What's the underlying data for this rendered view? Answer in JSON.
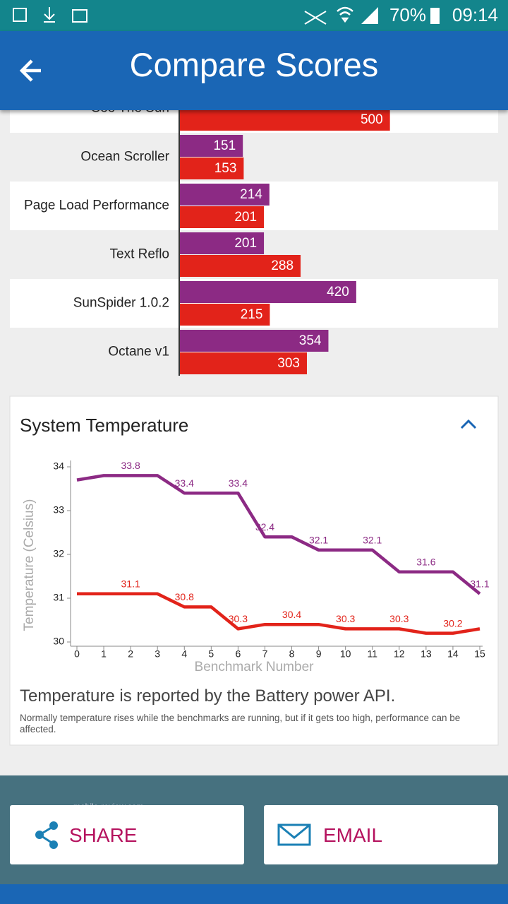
{
  "status_bar": {
    "battery": "70%",
    "time": "09:14"
  },
  "header": {
    "title": "Compare Scores"
  },
  "chart_data": [
    {
      "type": "bar",
      "orientation": "horizontal",
      "categories": [
        "See The Sun",
        "Ocean Scroller",
        "Page Load Performance",
        "Text Reflo",
        "SunSpider 1.0.2",
        "Octane v1"
      ],
      "series": [
        {
          "color": "#8c2a84",
          "values": [
            null,
            151,
            214,
            201,
            420,
            354
          ]
        },
        {
          "color": "#e2231a",
          "values": [
            500,
            153,
            201,
            288,
            215,
            303
          ]
        }
      ],
      "xlim": [
        0,
        750
      ]
    },
    {
      "type": "line",
      "title": "System Temperature",
      "xlabel": "Benchmark Number",
      "ylabel": "Temperature (Celsius)",
      "x": [
        0,
        1,
        2,
        3,
        4,
        5,
        6,
        7,
        8,
        9,
        10,
        11,
        12,
        13,
        14,
        15
      ],
      "xlim": [
        0,
        15
      ],
      "xticks": [
        0,
        1,
        2,
        3,
        4,
        5,
        6,
        7,
        8,
        9,
        10,
        11,
        12,
        13,
        14,
        15
      ],
      "ylim": [
        30,
        34
      ],
      "yticks": [
        30,
        31,
        32,
        33,
        34
      ],
      "series": [
        {
          "color": "#8c2a84",
          "values": [
            33.7,
            33.8,
            33.8,
            33.8,
            33.4,
            33.4,
            33.4,
            32.4,
            32.4,
            32.1,
            32.1,
            32.1,
            31.6,
            31.6,
            31.6,
            31.1
          ],
          "value_labels": [
            null,
            null,
            "33.8",
            null,
            "33.4",
            null,
            "33.4",
            "32.4",
            null,
            "32.1",
            null,
            "32.1",
            null,
            "31.6",
            null,
            "31.1"
          ]
        },
        {
          "color": "#e2231a",
          "values": [
            31.1,
            31.1,
            31.1,
            31.1,
            30.8,
            30.8,
            30.3,
            30.4,
            30.4,
            30.4,
            30.3,
            30.3,
            30.3,
            30.2,
            30.2,
            30.3
          ],
          "value_labels": [
            null,
            null,
            "31.1",
            null,
            "30.8",
            null,
            "30.3",
            null,
            "30.4",
            null,
            "30.3",
            null,
            "30.3",
            null,
            "30.2",
            null
          ]
        }
      ]
    }
  ],
  "temperature_note": {
    "headline": "Temperature is reported by the Battery power API.",
    "text": "Normally temperature rises while the benchmarks are running, but if it gets too high, performance can be affected."
  },
  "buttons": [
    "SHARE",
    "EMAIL"
  ],
  "watermark": "mobile-review.com"
}
